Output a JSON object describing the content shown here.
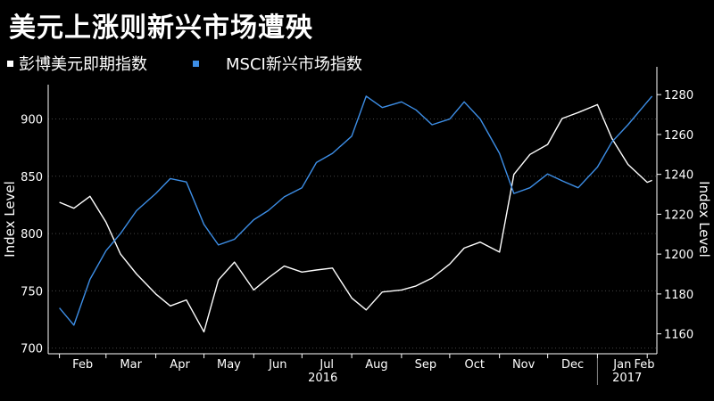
{
  "chart_data": {
    "type": "line",
    "title": "美元上涨则新兴市场遭殃",
    "y_left_label": "Index Level",
    "y_right_label": "Index Level",
    "y_left_range": [
      695,
      930
    ],
    "y_right_range": [
      1150,
      1285
    ],
    "y_left_ticks": [
      "700",
      "750",
      "800",
      "850",
      "900"
    ],
    "y_right_ticks": [
      "1160",
      "1180",
      "1200",
      "1220",
      "1240",
      "1260",
      "1280"
    ],
    "x_months": [
      "Feb",
      "Mar",
      "Apr",
      "May",
      "Jun",
      "Jul",
      "Aug",
      "Sep",
      "Oct",
      "Nov",
      "Dec",
      "Jan",
      "Feb"
    ],
    "x_years": [
      "2016",
      "2017"
    ],
    "series": [
      {
        "name": "彭博美元即期指数",
        "color": "#ffffff",
        "axis": "right",
        "x": [
          "2016-02-01",
          "2016-02-10",
          "2016-02-20",
          "2016-03-01",
          "2016-03-10",
          "2016-03-20",
          "2016-04-01",
          "2016-04-10",
          "2016-04-20",
          "2016-05-01",
          "2016-05-10",
          "2016-05-20",
          "2016-06-01",
          "2016-06-10",
          "2016-06-20",
          "2016-07-01",
          "2016-07-10",
          "2016-07-20",
          "2016-08-01",
          "2016-08-10",
          "2016-08-20",
          "2016-09-01",
          "2016-09-10",
          "2016-09-20",
          "2016-10-01",
          "2016-10-10",
          "2016-10-20",
          "2016-11-01",
          "2016-11-10",
          "2016-11-20",
          "2016-12-01",
          "2016-12-10",
          "2016-12-20",
          "2017-01-01",
          "2017-01-10",
          "2017-01-20",
          "2017-02-01",
          "2017-02-04"
        ],
        "values": [
          1226,
          1223,
          1229,
          1216,
          1200,
          1190,
          1180,
          1174,
          1177,
          1161,
          1187,
          1196,
          1182,
          1188,
          1194,
          1191,
          1192,
          1193,
          1178,
          1172,
          1181,
          1182,
          1184,
          1188,
          1195,
          1203,
          1206,
          1201,
          1240,
          1250,
          1255,
          1268,
          1271,
          1275,
          1258,
          1245,
          1236,
          1237
        ]
      },
      {
        "name": "MSCI新兴市场指数",
        "color": "#3d8ee6",
        "axis": "left",
        "x": [
          "2016-02-01",
          "2016-02-10",
          "2016-02-20",
          "2016-03-01",
          "2016-03-10",
          "2016-03-20",
          "2016-04-01",
          "2016-04-10",
          "2016-04-20",
          "2016-05-01",
          "2016-05-10",
          "2016-05-20",
          "2016-06-01",
          "2016-06-10",
          "2016-06-20",
          "2016-07-01",
          "2016-07-10",
          "2016-07-20",
          "2016-08-01",
          "2016-08-10",
          "2016-08-20",
          "2016-09-01",
          "2016-09-10",
          "2016-09-20",
          "2016-10-01",
          "2016-10-10",
          "2016-10-20",
          "2016-11-01",
          "2016-11-10",
          "2016-11-20",
          "2016-12-01",
          "2016-12-10",
          "2016-12-20",
          "2017-01-01",
          "2017-01-10",
          "2017-01-20",
          "2017-02-01",
          "2017-02-04"
        ],
        "values": [
          735,
          720,
          760,
          785,
          800,
          820,
          835,
          848,
          845,
          808,
          790,
          795,
          812,
          820,
          832,
          840,
          862,
          870,
          885,
          920,
          910,
          915,
          908,
          895,
          900,
          915,
          900,
          870,
          835,
          840,
          852,
          846,
          840,
          858,
          880,
          895,
          915,
          920
        ]
      }
    ]
  }
}
